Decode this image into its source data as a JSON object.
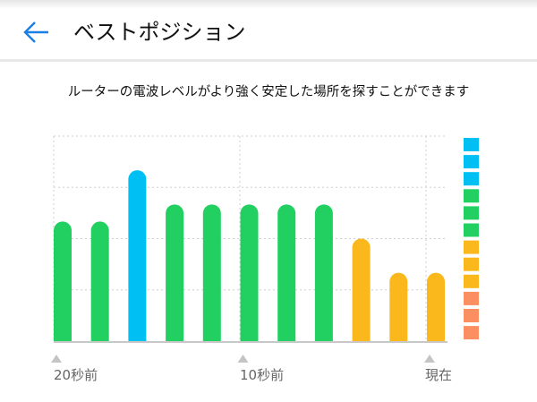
{
  "header": {
    "title": "ベストポジション",
    "back_icon": "arrow-left-icon",
    "accent": "#1a7fe6"
  },
  "description": "ルーターの電波レベルがより強く安定した場所を探すことができます",
  "chart_data": {
    "type": "bar",
    "categories": [
      "20秒前",
      "",
      "",
      "",
      "",
      "10秒前",
      "",
      "",
      "",
      "",
      "現在"
    ],
    "x_tick_labels": [
      "20秒前",
      "10秒前",
      "現在"
    ],
    "values": [
      7,
      7,
      10,
      8,
      8,
      8,
      8,
      8,
      6,
      4,
      4
    ],
    "ylim": [
      0,
      12
    ],
    "grid": true,
    "legend_levels": [
      {
        "range": [
          10,
          12
        ],
        "color": "#00bff2"
      },
      {
        "range": [
          7,
          9
        ],
        "color": "#22d062"
      },
      {
        "range": [
          4,
          6
        ],
        "color": "#fbb81c"
      },
      {
        "range": [
          1,
          3
        ],
        "color": "#fb8f62"
      }
    ]
  }
}
